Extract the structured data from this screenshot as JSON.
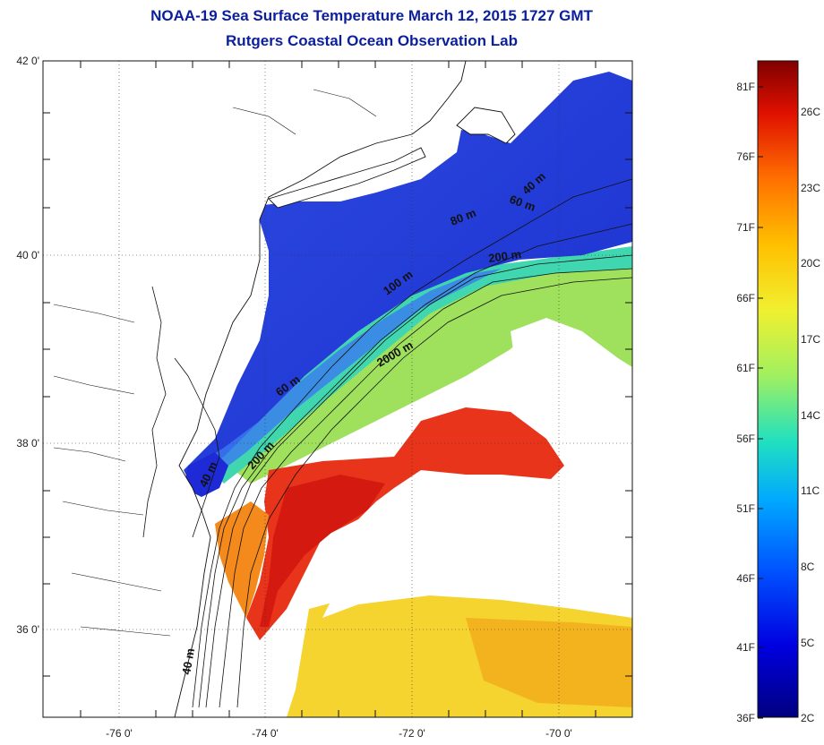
{
  "title": "NOAA-19 Sea Surface Temperature March 12, 2015 1727 GMT",
  "subtitle": "Rutgers Coastal Ocean Observation Lab",
  "lat_ticks": [
    {
      "label": "42 0'",
      "value": 42
    },
    {
      "label": "40 0'",
      "value": 40
    },
    {
      "label": "38 0'",
      "value": 38
    },
    {
      "label": "36 0'",
      "value": 36
    }
  ],
  "lon_ticks": [
    {
      "label": "-76 0'",
      "value": -76
    },
    {
      "label": "-74 0'",
      "value": -74
    },
    {
      "label": "-72 0'",
      "value": -72
    },
    {
      "label": "-70 0'",
      "value": -70
    }
  ],
  "isobath_labels": [
    {
      "text": "40 m"
    },
    {
      "text": "60 m"
    },
    {
      "text": "80 m"
    },
    {
      "text": "200 m"
    },
    {
      "text": "100 m"
    },
    {
      "text": "2000 m"
    },
    {
      "text": "60 m"
    },
    {
      "text": "200 m"
    },
    {
      "text": "40 m"
    },
    {
      "text": "40 m"
    }
  ],
  "colorbar": {
    "fahrenheit": [
      "81F",
      "76F",
      "71F",
      "66F",
      "61F",
      "56F",
      "51F",
      "46F",
      "41F",
      "36F"
    ],
    "celsius": [
      "26C",
      "23C",
      "20C",
      "17C",
      "14C",
      "11C",
      "8C",
      "5C",
      "2C"
    ]
  },
  "colors": {
    "title": "#0b1f9e",
    "cold": "#1d2ad6",
    "warm": "#e8341a",
    "mid": "#9ee05a"
  }
}
